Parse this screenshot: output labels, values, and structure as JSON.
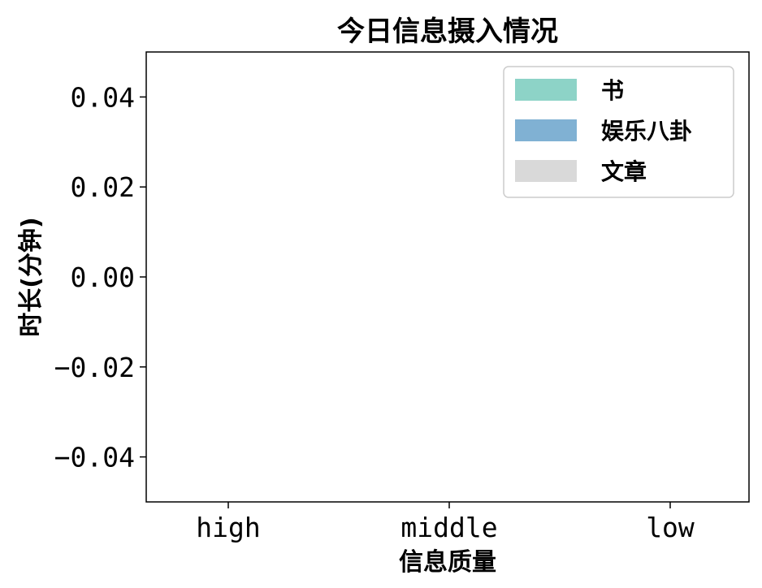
{
  "chart_data": {
    "type": "bar",
    "title": "今日信息摄入情况",
    "xlabel": "信息质量",
    "ylabel": "时长(分钟)",
    "categories": [
      "high",
      "middle",
      "low"
    ],
    "series": [
      {
        "name": "书",
        "values": [
          0,
          0,
          0
        ],
        "color": "#8dd3c7"
      },
      {
        "name": "娱乐八卦",
        "values": [
          0,
          0,
          0
        ],
        "color": "#80b1d3"
      },
      {
        "name": "文章",
        "values": [
          0,
          0,
          0
        ],
        "color": "#d9d9d9"
      }
    ],
    "ylim": [
      -0.05,
      0.05
    ],
    "yticks": [
      0.04,
      0.02,
      0.0,
      -0.02,
      -0.04
    ],
    "ytick_labels": [
      "0.04",
      "0.02",
      "0.00",
      "−0.02",
      "−0.04"
    ],
    "grid": false,
    "legend_position": "top-right"
  }
}
